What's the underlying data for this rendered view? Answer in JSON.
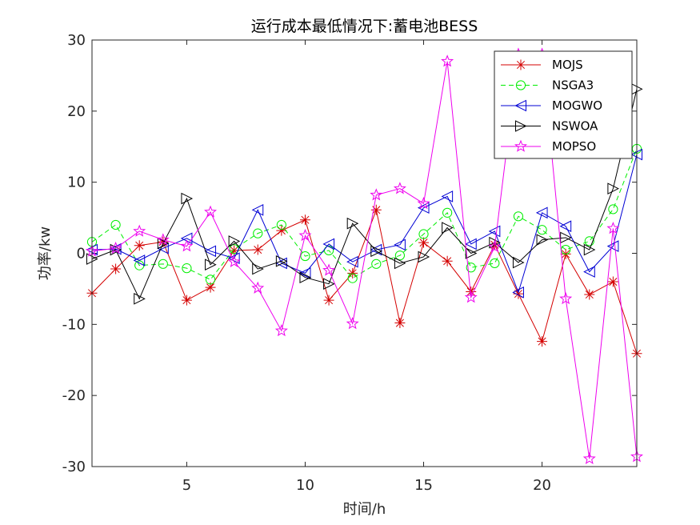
{
  "chart_data": {
    "type": "line",
    "title": "运行成本最低情况下:蓄电池BESS",
    "xlabel": "时间/h",
    "ylabel": "功率/kw",
    "xlim": [
      1,
      24
    ],
    "ylim": [
      -30,
      30
    ],
    "xticks": [
      5,
      10,
      15,
      20
    ],
    "yticks": [
      -30,
      -20,
      -10,
      0,
      10,
      20,
      30
    ],
    "legend_position": "top-right",
    "x": [
      1,
      2,
      3,
      4,
      5,
      6,
      7,
      8,
      9,
      10,
      11,
      12,
      13,
      14,
      15,
      16,
      17,
      18,
      19,
      20,
      21,
      22,
      23,
      24
    ],
    "series": [
      {
        "name": "MOJS",
        "color": "#d40000",
        "dash": "solid",
        "marker": "asterisk",
        "values": [
          -5.6,
          -2.2,
          1.1,
          1.6,
          -6.6,
          -4.8,
          0.4,
          0.5,
          3.2,
          4.7,
          -6.6,
          -2.8,
          6.1,
          -9.8,
          1.5,
          -1.1,
          -5.4,
          1.2,
          -5.7,
          -12.4,
          -0.1,
          -5.8,
          -4.0,
          -14.1
        ]
      },
      {
        "name": "NSGA3",
        "color": "#00ee00",
        "dash": "dashed",
        "marker": "circle",
        "values": [
          1.6,
          4.0,
          -1.7,
          -1.5,
          -2.1,
          -3.7,
          0.6,
          2.8,
          4.0,
          -0.4,
          0.4,
          -3.5,
          -1.5,
          -0.3,
          2.7,
          5.7,
          -2.0,
          -1.4,
          5.2,
          3.3,
          0.5,
          1.7,
          6.2,
          14.7
        ]
      },
      {
        "name": "MOGWO",
        "color": "#0000d4",
        "dash": "solid",
        "marker": "tri-left",
        "values": [
          0.5,
          0.6,
          -1.0,
          0.7,
          2.1,
          0.3,
          -0.7,
          6.1,
          -1.4,
          -2.8,
          1.3,
          -1.2,
          0.5,
          1.2,
          6.4,
          8.0,
          1.3,
          3.1,
          -5.5,
          5.7,
          3.8,
          -2.6,
          1.0,
          13.9
        ]
      },
      {
        "name": "NSWOA",
        "color": "#000000",
        "dash": "solid",
        "marker": "tri-right",
        "values": [
          -0.8,
          0.5,
          -6.4,
          1.4,
          7.7,
          -1.6,
          1.7,
          -2.2,
          -1.1,
          -3.4,
          -4.3,
          4.2,
          0.3,
          -1.4,
          -0.5,
          3.6,
          0.0,
          1.5,
          -1.3,
          1.9,
          2.2,
          0.5,
          9.1,
          23.1
        ]
      },
      {
        "name": "MOPSO",
        "color": "#ee00ee",
        "dash": "solid",
        "marker": "star",
        "values": [
          0.3,
          0.7,
          3.1,
          1.9,
          1.0,
          5.8,
          -1.2,
          -4.9,
          -10.9,
          2.5,
          -2.4,
          -9.9,
          8.2,
          9.1,
          7.0,
          27.0,
          -6.2,
          0.9,
          28.0,
          28.0,
          -6.4,
          -28.9,
          3.5,
          -28.6
        ]
      }
    ]
  }
}
